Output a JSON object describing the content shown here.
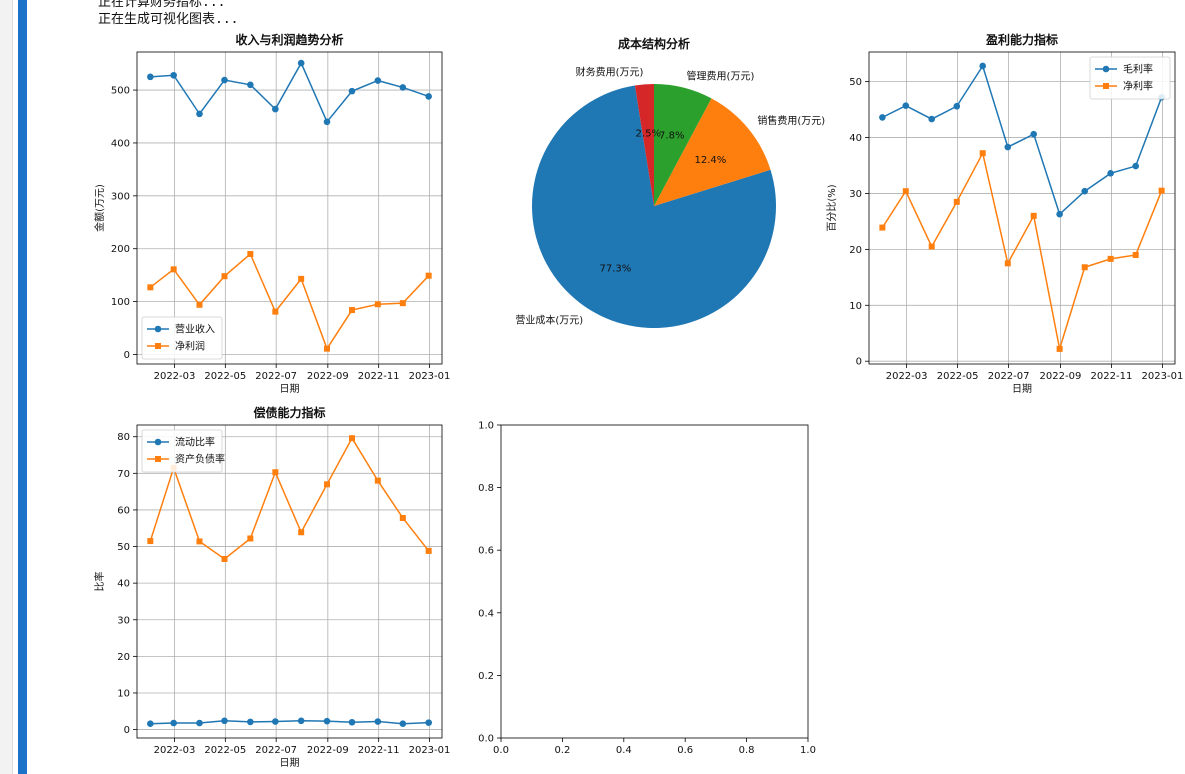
{
  "console": {
    "lines": [
      "正在计算财务指标...",
      "正在生成可视化图表..."
    ]
  },
  "colors": {
    "blue": "#1f77b4",
    "orange": "#ff7f0e",
    "green": "#2ca02c",
    "red": "#d62728"
  },
  "chart_data": [
    {
      "id": "revenue-profit",
      "type": "line",
      "title": "收入与利润趋势分析",
      "xlabel": "日期",
      "ylabel": "金额(万元)",
      "x": [
        "2022-01-31",
        "2022-02-28",
        "2022-03-31",
        "2022-04-30",
        "2022-05-31",
        "2022-06-30",
        "2022-07-31",
        "2022-08-31",
        "2022-09-30",
        "2022-10-31",
        "2022-11-30",
        "2022-12-31"
      ],
      "xticks": [
        "2022-03",
        "2022-05",
        "2022-07",
        "2022-09",
        "2022-11",
        "2023-01"
      ],
      "xtick_dates": [
        "2022-03-01",
        "2022-05-01",
        "2022-07-01",
        "2022-09-01",
        "2022-11-01",
        "2023-01-01"
      ],
      "xlim": [
        "2022-01-15",
        "2023-01-16"
      ],
      "ylim": [
        -18,
        572
      ],
      "yticks": [
        0,
        100,
        200,
        300,
        400,
        500
      ],
      "grid": true,
      "legend": "lower-left",
      "series": [
        {
          "name": "营业收入",
          "marker": "circle",
          "color": "#1f77b4",
          "values": [
            525,
            528,
            455,
            519,
            510,
            464,
            551,
            440,
            498,
            518,
            505,
            488
          ]
        },
        {
          "name": "净利润",
          "marker": "square",
          "color": "#ff7f0e",
          "values": [
            127,
            161,
            94,
            148,
            190,
            81,
            143,
            11,
            84,
            95,
            97,
            149
          ]
        }
      ]
    },
    {
      "id": "cost-structure",
      "type": "pie",
      "title": "成本结构分析",
      "slices": [
        {
          "label": "营业成本(万元)",
          "value": 77.3,
          "pct": "77.3%",
          "color": "#1f77b4"
        },
        {
          "label": "销售费用(万元)",
          "value": 12.4,
          "pct": "12.4%",
          "color": "#ff7f0e"
        },
        {
          "label": "管理费用(万元)",
          "value": 7.8,
          "pct": "7.8%",
          "color": "#2ca02c"
        },
        {
          "label": "财务费用(万元)",
          "value": 2.5,
          "pct": "2.5%",
          "color": "#d62728"
        }
      ]
    },
    {
      "id": "profitability",
      "type": "line",
      "title": "盈利能力指标",
      "xlabel": "日期",
      "ylabel": "百分比(%)",
      "x": [
        "2022-01-31",
        "2022-02-28",
        "2022-03-31",
        "2022-04-30",
        "2022-05-31",
        "2022-06-30",
        "2022-07-31",
        "2022-08-31",
        "2022-09-30",
        "2022-10-31",
        "2022-11-30",
        "2022-12-31"
      ],
      "xticks": [
        "2022-03",
        "2022-05",
        "2022-07",
        "2022-09",
        "2022-11",
        "2023-01"
      ],
      "xtick_dates": [
        "2022-03-01",
        "2022-05-01",
        "2022-07-01",
        "2022-09-01",
        "2022-11-01",
        "2023-01-01"
      ],
      "xlim": [
        "2022-01-15",
        "2023-01-16"
      ],
      "ylim": [
        -0.5,
        55.3
      ],
      "yticks": [
        0,
        10,
        20,
        30,
        40,
        50
      ],
      "grid": true,
      "legend": "upper-right",
      "series": [
        {
          "name": "毛利率",
          "marker": "circle",
          "color": "#1f77b4",
          "values": [
            43.6,
            45.7,
            43.3,
            45.6,
            52.8,
            38.3,
            40.6,
            26.3,
            30.4,
            33.6,
            34.9,
            47.2
          ]
        },
        {
          "name": "净利率",
          "marker": "square",
          "color": "#ff7f0e",
          "values": [
            23.9,
            30.4,
            20.5,
            28.5,
            37.2,
            17.5,
            26.0,
            2.2,
            16.8,
            18.3,
            19.0,
            30.5
          ]
        }
      ]
    },
    {
      "id": "solvency",
      "type": "line",
      "title": "偿债能力指标",
      "xlabel": "日期",
      "ylabel": "比率",
      "x": [
        "2022-01-31",
        "2022-02-28",
        "2022-03-31",
        "2022-04-30",
        "2022-05-31",
        "2022-06-30",
        "2022-07-31",
        "2022-08-31",
        "2022-09-30",
        "2022-10-31",
        "2022-11-30",
        "2022-12-31"
      ],
      "xticks": [
        "2022-03",
        "2022-05",
        "2022-07",
        "2022-09",
        "2022-11",
        "2023-01"
      ],
      "xtick_dates": [
        "2022-03-01",
        "2022-05-01",
        "2022-07-01",
        "2022-09-01",
        "2022-11-01",
        "2023-01-01"
      ],
      "xlim": [
        "2022-01-15",
        "2023-01-16"
      ],
      "ylim": [
        -2.3,
        83.2
      ],
      "yticks": [
        0,
        10,
        20,
        30,
        40,
        50,
        60,
        70,
        80
      ],
      "grid": true,
      "legend": "upper-left",
      "series": [
        {
          "name": "流动比率",
          "marker": "circle",
          "color": "#1f77b4",
          "values": [
            1.6,
            1.8,
            1.8,
            2.4,
            2.1,
            2.2,
            2.4,
            2.3,
            2.0,
            2.2,
            1.6,
            1.9
          ]
        },
        {
          "name": "资产负债率",
          "marker": "square",
          "color": "#ff7f0e",
          "values": [
            51.5,
            71.5,
            51.4,
            46.6,
            52.2,
            70.3,
            53.9,
            67.0,
            79.6,
            68.0,
            57.8,
            48.8
          ]
        }
      ]
    },
    {
      "id": "empty-axes",
      "type": "line",
      "title": "",
      "xlim": [
        0,
        1
      ],
      "ylim": [
        0,
        1
      ],
      "xticks": [
        "0.0",
        "0.2",
        "0.4",
        "0.6",
        "0.8",
        "1.0"
      ],
      "yticks": [
        "0.0",
        "0.2",
        "0.4",
        "0.6",
        "0.8",
        "1.0"
      ],
      "grid": false,
      "series": []
    }
  ]
}
